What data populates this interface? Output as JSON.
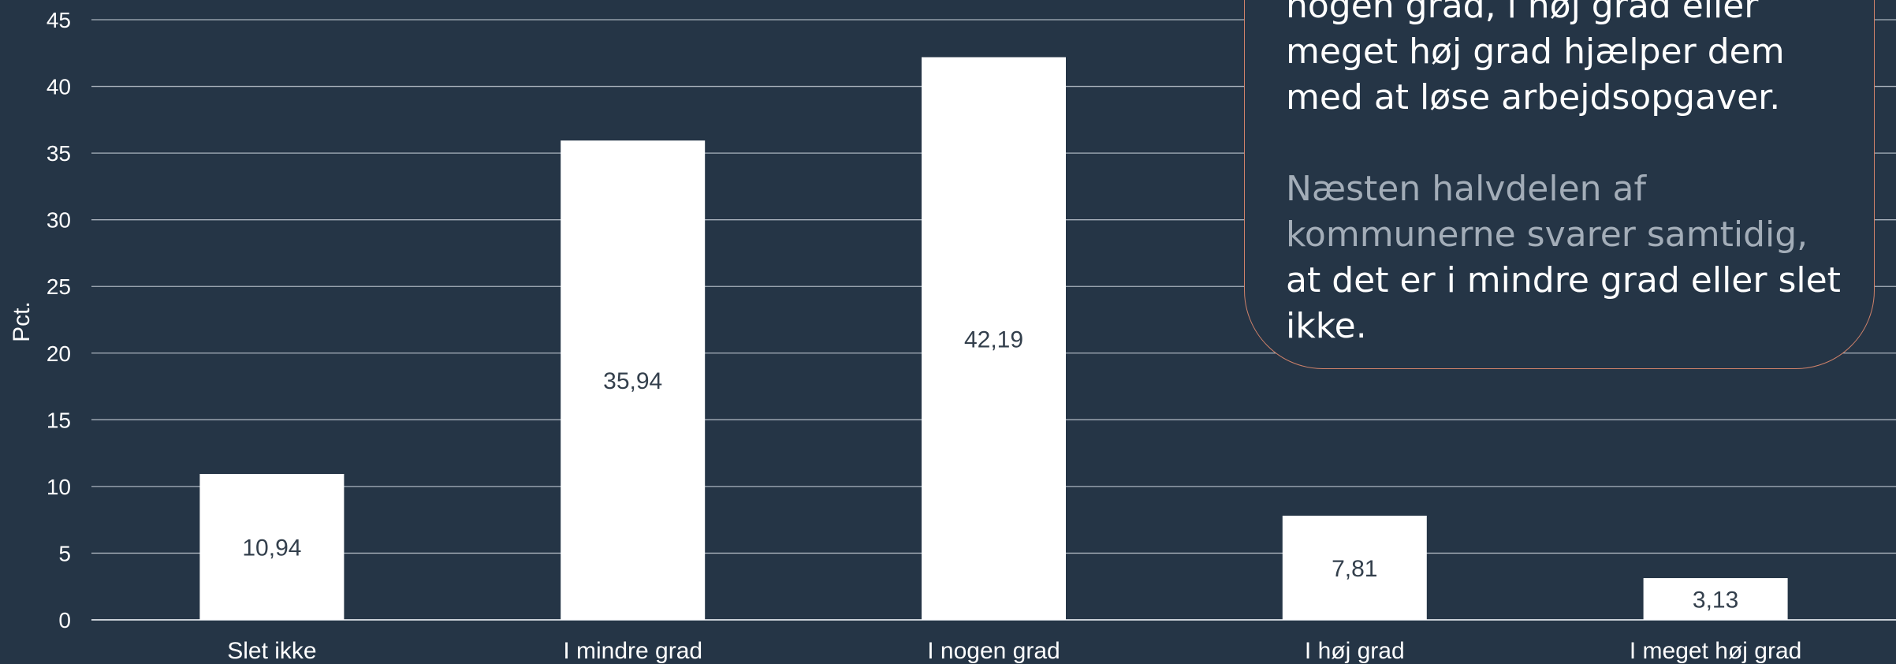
{
  "chart_data": {
    "type": "bar",
    "categories": [
      "Slet ikke",
      "I mindre grad",
      "I nogen grad",
      "I høj grad",
      "I meget høj grad"
    ],
    "values": [
      10.94,
      35.94,
      42.19,
      7.81,
      3.13
    ],
    "value_labels": [
      "10,94",
      "35,94",
      "42,19",
      "7,81",
      "3,13"
    ],
    "ylabel": "Pct.",
    "ylim": [
      0,
      45
    ],
    "yticks": [
      0,
      5,
      10,
      15,
      20,
      25,
      30,
      35,
      40,
      45
    ],
    "grid": true
  },
  "callout": {
    "line1": "nogen grad, i høj grad eller",
    "line2": "meget høj grad hjælper dem",
    "line3": "med at løse arbejdsopgaver.",
    "para2_muted": "Næsten halvdelen af kommunerne svarer samtidig,",
    "para2_rest": " at det er i mindre grad eller slet ikke."
  },
  "colors": {
    "background": "#253546",
    "bar": "#ffffff",
    "value_label": "#333f4c",
    "callout_border": "#d0826a",
    "muted_text": "#a3adb8"
  }
}
